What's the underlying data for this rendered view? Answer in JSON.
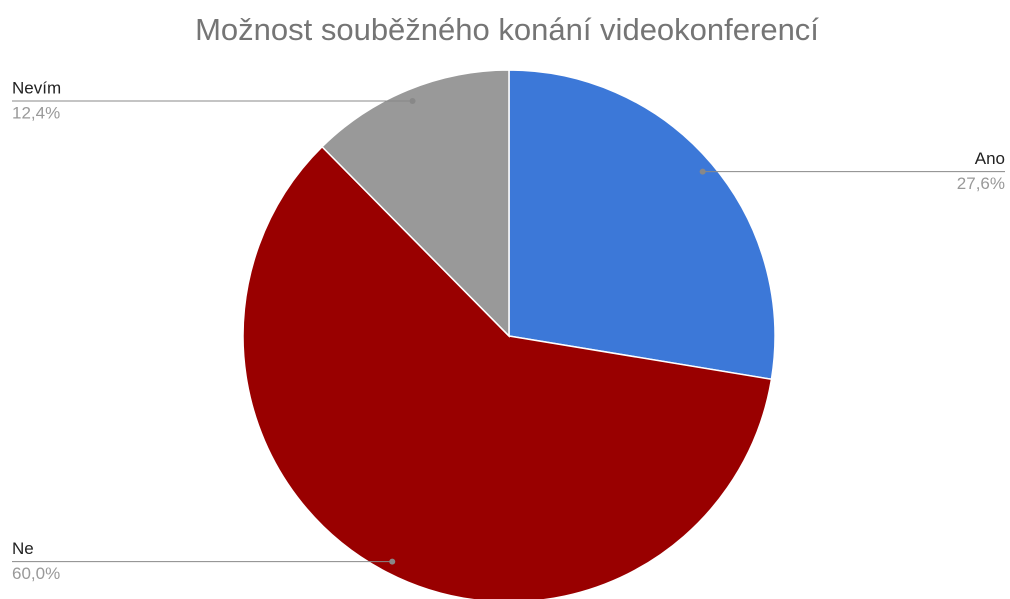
{
  "chart_data": {
    "type": "pie",
    "title": "Možnost souběžného konání videokonferencí",
    "categories": [
      "Ano",
      "Ne",
      "Nevím"
    ],
    "values": [
      27.6,
      60.0,
      12.4
    ],
    "value_labels": [
      "27,6%",
      "60,0%",
      "12,4%"
    ],
    "colors": [
      "#3c78d8",
      "#990000",
      "#999999"
    ]
  }
}
